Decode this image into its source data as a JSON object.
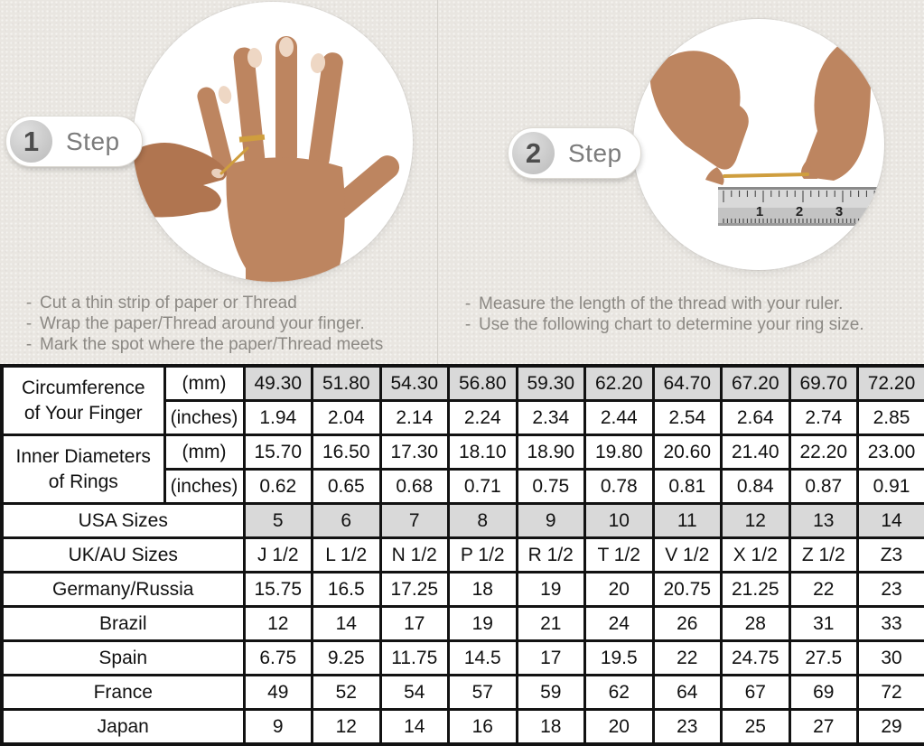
{
  "colors": {
    "background": "#e9e6e1",
    "table_shaded_cell": "#d9d9d9",
    "table_border": "#121212",
    "badge_number": "#4d4d4d",
    "badge_label": "#7c7c7c",
    "instruction_text": "#8c8984",
    "skin_tone": "#bd8560",
    "gold_thread": "#cf9e3e"
  },
  "steps": [
    {
      "number": "1",
      "label": "Step",
      "image": "hand-with-paper-thread-around-ring-finger",
      "instructions": [
        "Cut a thin strip of paper or Thread",
        "Wrap the paper/Thread around your finger.",
        "Mark the spot where the paper/Thread meets"
      ]
    },
    {
      "number": "2",
      "label": "Step",
      "image": "hands-measuring-thread-with-ruler",
      "instructions": [
        "Measure the length of the thread with your ruler.",
        "Use the following chart to determine your ring size."
      ],
      "ruler_numbers": [
        "1",
        "2",
        "3"
      ]
    }
  ],
  "table": {
    "rows": [
      {
        "type": "group-first",
        "label": "Circumference\nof Your Finger",
        "unit": "(mm)",
        "shaded": true,
        "values": [
          "49.30",
          "51.80",
          "54.30",
          "56.80",
          "59.30",
          "62.20",
          "64.70",
          "67.20",
          "69.70",
          "72.20"
        ]
      },
      {
        "type": "group-second",
        "unit": "(inches)",
        "shaded": false,
        "values": [
          "1.94",
          "2.04",
          "2.14",
          "2.24",
          "2.34",
          "2.44",
          "2.54",
          "2.64",
          "2.74",
          "2.85"
        ]
      },
      {
        "type": "group-first",
        "label": "Inner Diameters\nof Rings",
        "unit": "(mm)",
        "shaded": false,
        "values": [
          "15.70",
          "16.50",
          "17.30",
          "18.10",
          "18.90",
          "19.80",
          "20.60",
          "21.40",
          "22.20",
          "23.00"
        ]
      },
      {
        "type": "group-second",
        "unit": "(inches)",
        "shaded": false,
        "values": [
          "0.62",
          "0.65",
          "0.68",
          "0.71",
          "0.75",
          "0.78",
          "0.81",
          "0.84",
          "0.87",
          "0.91"
        ]
      },
      {
        "type": "country",
        "label": "USA Sizes",
        "shaded": true,
        "values": [
          "5",
          "6",
          "7",
          "8",
          "9",
          "10",
          "11",
          "12",
          "13",
          "14"
        ]
      },
      {
        "type": "country",
        "label": "UK/AU Sizes",
        "shaded": false,
        "values": [
          "J 1/2",
          "L 1/2",
          "N 1/2",
          "P 1/2",
          "R 1/2",
          "T 1/2",
          "V 1/2",
          "X 1/2",
          "Z 1/2",
          "Z3"
        ]
      },
      {
        "type": "country",
        "label": "Germany/Russia",
        "shaded": false,
        "values": [
          "15.75",
          "16.5",
          "17.25",
          "18",
          "19",
          "20",
          "20.75",
          "21.25",
          "22",
          "23"
        ]
      },
      {
        "type": "country",
        "label": "Brazil",
        "shaded": false,
        "values": [
          "12",
          "14",
          "17",
          "19",
          "21",
          "24",
          "26",
          "28",
          "31",
          "33"
        ]
      },
      {
        "type": "country",
        "label": "Spain",
        "shaded": false,
        "values": [
          "6.75",
          "9.25",
          "11.75",
          "14.5",
          "17",
          "19.5",
          "22",
          "24.75",
          "27.5",
          "30"
        ]
      },
      {
        "type": "country",
        "label": "France",
        "shaded": false,
        "values": [
          "49",
          "52",
          "54",
          "57",
          "59",
          "62",
          "64",
          "67",
          "69",
          "72"
        ]
      },
      {
        "type": "country",
        "label": "Japan",
        "shaded": false,
        "values": [
          "9",
          "12",
          "14",
          "16",
          "18",
          "20",
          "23",
          "25",
          "27",
          "29"
        ]
      }
    ]
  }
}
